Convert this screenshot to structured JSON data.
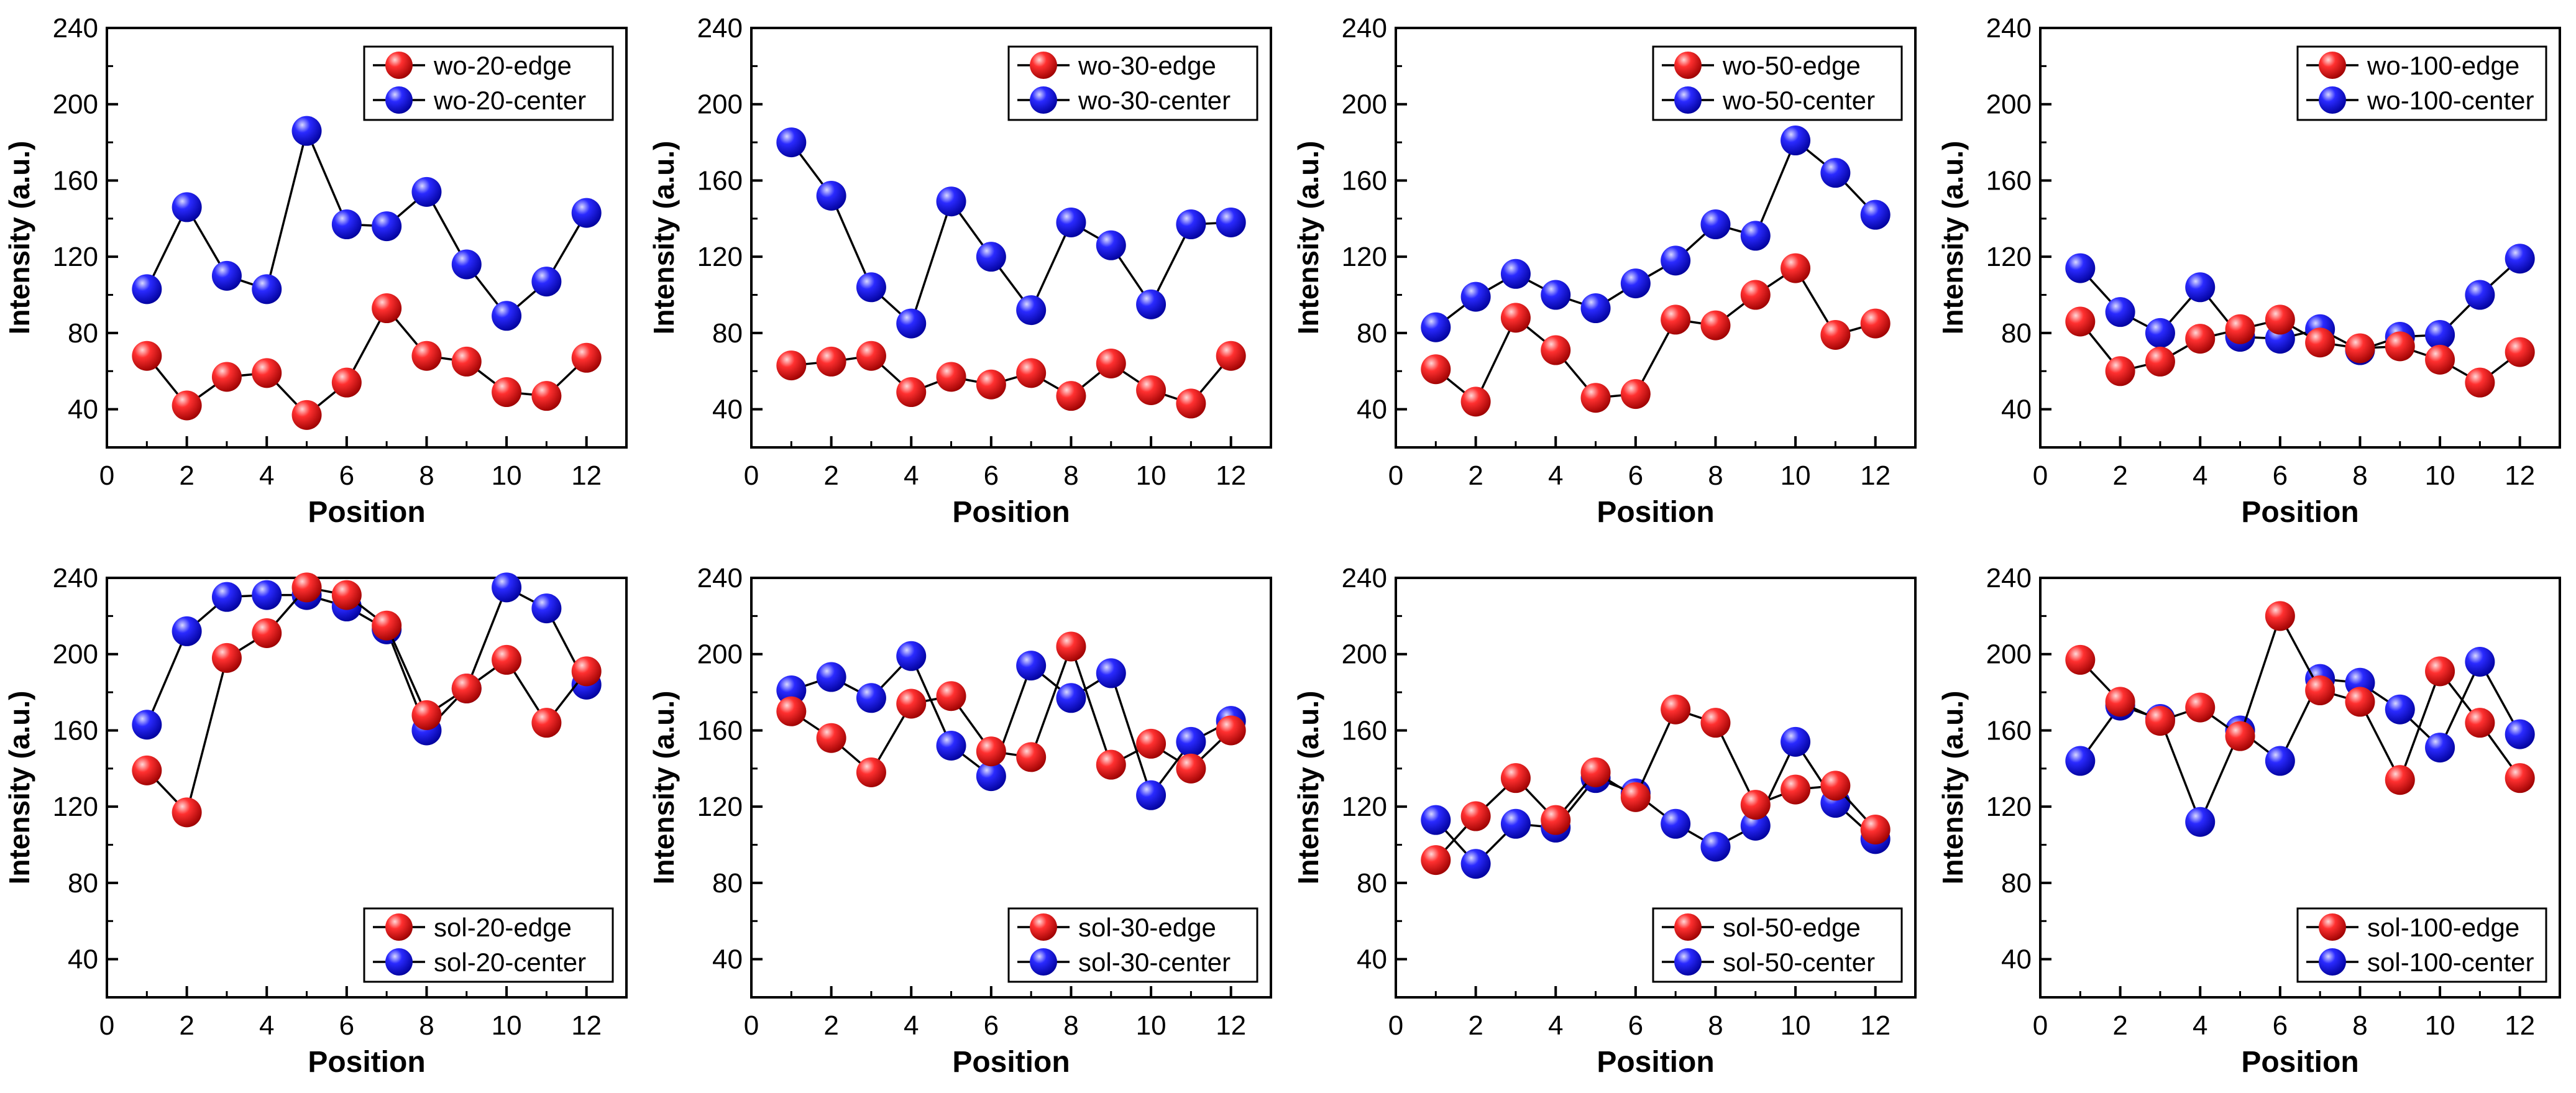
{
  "figure": {
    "colors": {
      "edge": "#ff1a1a",
      "center": "#1a1aff",
      "axis": "#000000",
      "line": "#000000"
    }
  },
  "chart_data": [
    {
      "type": "line",
      "xlabel": "Position",
      "ylabel": "Intensity (a.u.)",
      "xlim": [
        0,
        13
      ],
      "ylim": [
        20,
        240
      ],
      "xticks": [
        0,
        2,
        4,
        6,
        8,
        10,
        12
      ],
      "yticks": [
        40,
        80,
        120,
        160,
        200,
        240
      ],
      "legend_position": "top-right",
      "x": [
        1,
        2,
        3,
        4,
        5,
        6,
        7,
        8,
        9,
        10,
        11,
        12
      ],
      "series": [
        {
          "name": "wo-20-edge",
          "marker": "edge",
          "values": [
            68,
            42,
            57,
            59,
            37,
            54,
            93,
            68,
            65,
            49,
            47,
            67
          ]
        },
        {
          "name": "wo-20-center",
          "marker": "center",
          "values": [
            103,
            146,
            110,
            103,
            186,
            137,
            136,
            154,
            116,
            89,
            107,
            143
          ]
        }
      ]
    },
    {
      "type": "line",
      "xlabel": "Position",
      "ylabel": "Intensity (a.u.)",
      "xlim": [
        0,
        13
      ],
      "ylim": [
        20,
        240
      ],
      "xticks": [
        0,
        2,
        4,
        6,
        8,
        10,
        12
      ],
      "yticks": [
        40,
        80,
        120,
        160,
        200,
        240
      ],
      "legend_position": "top-right",
      "x": [
        1,
        2,
        3,
        4,
        5,
        6,
        7,
        8,
        9,
        10,
        11,
        12
      ],
      "series": [
        {
          "name": "wo-30-edge",
          "marker": "edge",
          "values": [
            63,
            65,
            68,
            49,
            57,
            53,
            59,
            47,
            64,
            50,
            43,
            68
          ]
        },
        {
          "name": "wo-30-center",
          "marker": "center",
          "values": [
            180,
            152,
            104,
            85,
            149,
            120,
            92,
            138,
            126,
            95,
            137,
            138
          ]
        }
      ]
    },
    {
      "type": "line",
      "xlabel": "Position",
      "ylabel": "Intensity (a.u.)",
      "xlim": [
        0,
        13
      ],
      "ylim": [
        20,
        240
      ],
      "xticks": [
        0,
        2,
        4,
        6,
        8,
        10,
        12
      ],
      "yticks": [
        40,
        80,
        120,
        160,
        200,
        240
      ],
      "legend_position": "top-right",
      "x": [
        1,
        2,
        3,
        4,
        5,
        6,
        7,
        8,
        9,
        10,
        11,
        12
      ],
      "series": [
        {
          "name": "wo-50-edge",
          "marker": "edge",
          "values": [
            61,
            44,
            88,
            71,
            46,
            48,
            87,
            84,
            100,
            114,
            79,
            85
          ]
        },
        {
          "name": "wo-50-center",
          "marker": "center",
          "values": [
            83,
            99,
            111,
            100,
            93,
            106,
            118,
            137,
            131,
            181,
            164,
            142
          ]
        }
      ]
    },
    {
      "type": "line",
      "xlabel": "Position",
      "ylabel": "Intensity (a.u.)",
      "xlim": [
        0,
        13
      ],
      "ylim": [
        20,
        240
      ],
      "xticks": [
        0,
        2,
        4,
        6,
        8,
        10,
        12
      ],
      "yticks": [
        40,
        80,
        120,
        160,
        200,
        240
      ],
      "legend_position": "top-right",
      "x": [
        1,
        2,
        3,
        4,
        5,
        6,
        7,
        8,
        9,
        10,
        11,
        12
      ],
      "series": [
        {
          "name": "wo-100-edge",
          "marker": "edge",
          "values": [
            86,
            60,
            65,
            77,
            82,
            87,
            75,
            72,
            73,
            66,
            54,
            70
          ]
        },
        {
          "name": "wo-100-center",
          "marker": "center",
          "values": [
            114,
            91,
            80,
            104,
            78,
            77,
            82,
            71,
            78,
            79,
            100,
            119
          ]
        }
      ]
    },
    {
      "type": "line",
      "xlabel": "Position",
      "ylabel": "Intensity (a.u.)",
      "xlim": [
        0,
        13
      ],
      "ylim": [
        20,
        240
      ],
      "xticks": [
        0,
        2,
        4,
        6,
        8,
        10,
        12
      ],
      "yticks": [
        40,
        80,
        120,
        160,
        200,
        240
      ],
      "legend_position": "bottom-right",
      "x": [
        1,
        2,
        3,
        4,
        5,
        6,
        7,
        8,
        9,
        10,
        11,
        12
      ],
      "series": [
        {
          "name": "sol-20-edge",
          "marker": "edge",
          "values": [
            139,
            117,
            198,
            211,
            235,
            231,
            215,
            168,
            182,
            197,
            164,
            191
          ]
        },
        {
          "name": "sol-20-center",
          "marker": "center",
          "values": [
            163,
            212,
            230,
            231,
            231,
            225,
            213,
            160,
            182,
            235,
            224,
            184
          ]
        }
      ]
    },
    {
      "type": "line",
      "xlabel": "Position",
      "ylabel": "Intensity (a.u.)",
      "xlim": [
        0,
        13
      ],
      "ylim": [
        20,
        240
      ],
      "xticks": [
        0,
        2,
        4,
        6,
        8,
        10,
        12
      ],
      "yticks": [
        40,
        80,
        120,
        160,
        200,
        240
      ],
      "legend_position": "bottom-right",
      "x": [
        1,
        2,
        3,
        4,
        5,
        6,
        7,
        8,
        9,
        10,
        11,
        12
      ],
      "series": [
        {
          "name": "sol-30-edge",
          "marker": "edge",
          "values": [
            170,
            156,
            138,
            174,
            178,
            149,
            146,
            204,
            142,
            153,
            140,
            160
          ]
        },
        {
          "name": "sol-30-center",
          "marker": "center",
          "values": [
            181,
            188,
            177,
            199,
            152,
            136,
            194,
            177,
            190,
            126,
            154,
            165
          ]
        }
      ]
    },
    {
      "type": "line",
      "xlabel": "Position",
      "ylabel": "Intensity (a.u.)",
      "xlim": [
        0,
        13
      ],
      "ylim": [
        20,
        240
      ],
      "xticks": [
        0,
        2,
        4,
        6,
        8,
        10,
        12
      ],
      "yticks": [
        40,
        80,
        120,
        160,
        200,
        240
      ],
      "legend_position": "bottom-right",
      "x": [
        1,
        2,
        3,
        4,
        5,
        6,
        7,
        8,
        9,
        10,
        11,
        12
      ],
      "series": [
        {
          "name": "sol-50-edge",
          "marker": "edge",
          "values": [
            92,
            115,
            135,
            113,
            138,
            125,
            171,
            164,
            121,
            129,
            131,
            108
          ]
        },
        {
          "name": "sol-50-center",
          "marker": "center",
          "values": [
            113,
            90,
            111,
            109,
            135,
            127,
            111,
            99,
            110,
            154,
            122,
            103
          ]
        }
      ]
    },
    {
      "type": "line",
      "xlabel": "Position",
      "ylabel": "Intensity (a.u.)",
      "xlim": [
        0,
        13
      ],
      "ylim": [
        20,
        240
      ],
      "xticks": [
        0,
        2,
        4,
        6,
        8,
        10,
        12
      ],
      "yticks": [
        40,
        80,
        120,
        160,
        200,
        240
      ],
      "legend_position": "bottom-right",
      "x": [
        1,
        2,
        3,
        4,
        5,
        6,
        7,
        8,
        9,
        10,
        11,
        12
      ],
      "series": [
        {
          "name": "sol-100-edge",
          "marker": "edge",
          "values": [
            197,
            175,
            165,
            172,
            157,
            220,
            181,
            175,
            134,
            191,
            164,
            135
          ]
        },
        {
          "name": "sol-100-center",
          "marker": "center",
          "values": [
            144,
            173,
            166,
            112,
            160,
            144,
            187,
            185,
            171,
            151,
            196,
            158
          ]
        }
      ]
    }
  ]
}
